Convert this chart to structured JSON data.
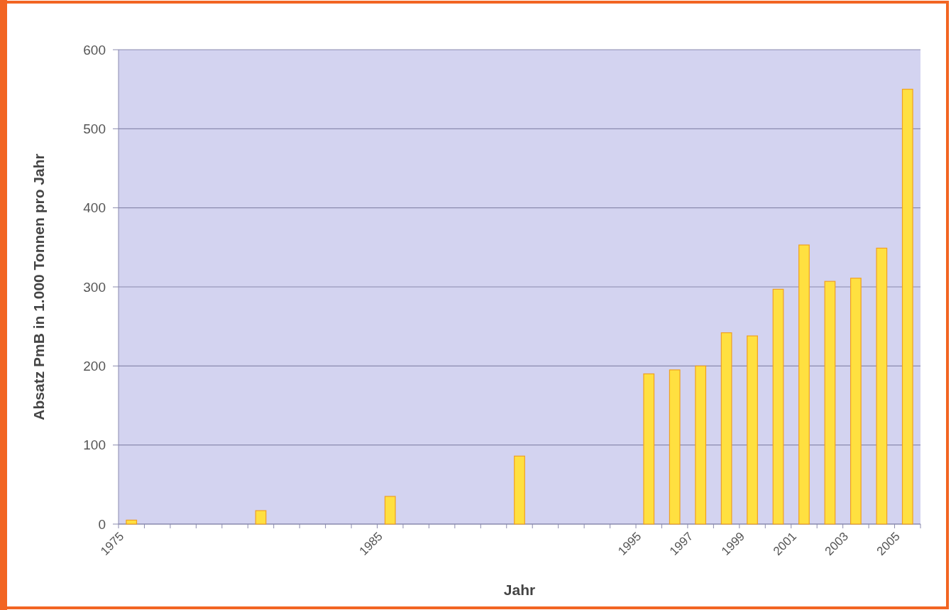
{
  "chart_data": {
    "type": "bar",
    "xlabel": "Jahr",
    "ylabel": "Absatz PmB in 1.000 Tonnen pro Jahr",
    "categories": [
      "1975",
      null,
      null,
      null,
      null,
      null,
      null,
      null,
      null,
      null,
      "1985",
      null,
      null,
      null,
      null,
      null,
      null,
      null,
      null,
      null,
      "1995",
      null,
      "1997",
      null,
      "1999",
      null,
      "2001",
      null,
      "2003",
      null,
      "2005"
    ],
    "values": [
      5,
      null,
      null,
      null,
      null,
      17,
      null,
      null,
      null,
      null,
      35,
      null,
      null,
      null,
      null,
      86,
      null,
      null,
      null,
      null,
      190,
      195,
      200,
      242,
      238,
      297,
      353,
      307,
      311,
      349,
      550
    ],
    "color": "#ffe040",
    "ylim": [
      0,
      600
    ],
    "yticks": [
      0,
      100,
      200,
      300,
      400,
      500,
      600
    ],
    "grid": "y"
  }
}
